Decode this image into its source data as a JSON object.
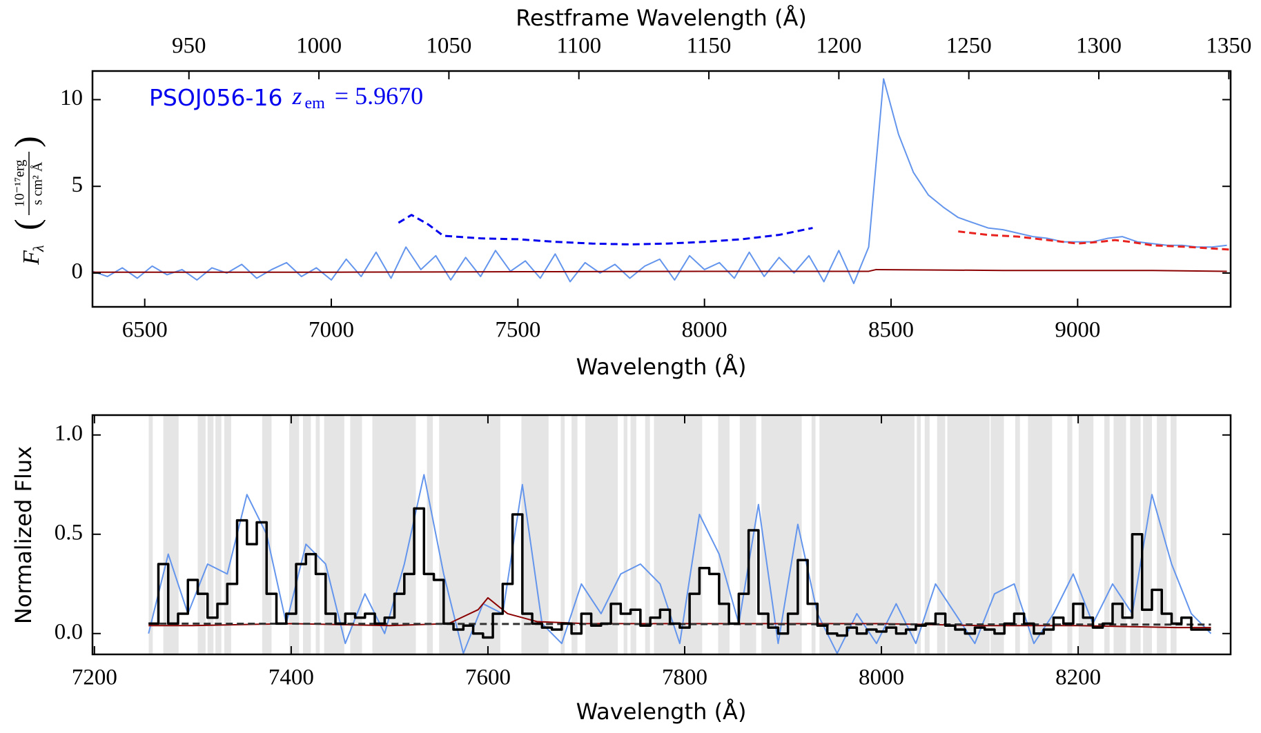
{
  "chart_data": [
    {
      "type": "line",
      "x2label": "Restframe Wavelength (Å)",
      "xlabel": "Wavelength (Å)",
      "ylabel": {
        "symbol": "F",
        "sub": "λ",
        "numerator": "10⁻¹⁷erg",
        "denominator": "s cm² Å"
      },
      "annotation": {
        "name": "PSOJ056-16",
        "z": "z",
        "z_sub": "em",
        "z_value": "= 5.9670"
      },
      "xlim": [
        6360,
        9410
      ],
      "ylim": [
        -1.95,
        11.65
      ],
      "x2lim": [
        912.9,
        1350.7
      ],
      "xticks": [
        6500,
        7000,
        7500,
        8000,
        8500,
        9000
      ],
      "yticks": [
        0,
        5,
        10
      ],
      "x2ticks": [
        950,
        1000,
        1050,
        1100,
        1150,
        1200,
        1250,
        1300,
        1350
      ],
      "series": [
        {
          "color": "#6495ed",
          "style": "solid",
          "x": [
            6360,
            6400,
            6440,
            6480,
            6520,
            6560,
            6600,
            6640,
            6680,
            6720,
            6760,
            6800,
            6840,
            6880,
            6920,
            6960,
            7000,
            7040,
            7080,
            7120,
            7160,
            7200,
            7240,
            7280,
            7320,
            7360,
            7400,
            7440,
            7480,
            7520,
            7560,
            7600,
            7640,
            7680,
            7720,
            7760,
            7800,
            7840,
            7880,
            7920,
            7960,
            8000,
            8040,
            8080,
            8120,
            8160,
            8200,
            8240,
            8280,
            8320,
            8360,
            8400,
            8440,
            8480,
            8520,
            8560,
            8600,
            8640,
            8680,
            8720,
            8760,
            8800,
            8840,
            8880,
            8920,
            8960,
            9000,
            9040,
            9080,
            9120,
            9160,
            9200,
            9240,
            9280,
            9320,
            9360,
            9400
          ],
          "values": [
            0.1,
            -0.2,
            0.3,
            -0.3,
            0.4,
            -0.1,
            0.2,
            -0.4,
            0.3,
            0.0,
            0.5,
            -0.3,
            0.2,
            0.6,
            -0.2,
            0.3,
            -0.4,
            0.8,
            -0.2,
            1.2,
            -0.3,
            1.5,
            0.2,
            1.0,
            -0.4,
            0.9,
            -0.2,
            1.3,
            0.1,
            0.7,
            -0.3,
            1.1,
            -0.5,
            0.6,
            0.0,
            0.5,
            -0.3,
            0.4,
            0.8,
            -0.4,
            1.0,
            0.2,
            0.6,
            -0.3,
            1.2,
            -0.2,
            0.9,
            0.0,
            1.0,
            -0.5,
            1.3,
            -0.6,
            1.5,
            11.2,
            8.0,
            5.8,
            4.5,
            3.8,
            3.2,
            2.9,
            2.6,
            2.5,
            2.3,
            2.1,
            2.0,
            1.8,
            1.8,
            1.8,
            2.0,
            2.1,
            1.8,
            1.7,
            1.6,
            1.6,
            1.5,
            1.5,
            1.6
          ]
        },
        {
          "color": "#8b0000",
          "style": "solid",
          "x": [
            6360,
            7000,
            7600,
            8000,
            8440,
            8460,
            8800,
            9200,
            9400
          ],
          "values": [
            0.05,
            0.05,
            0.08,
            0.1,
            0.1,
            0.2,
            0.15,
            0.15,
            0.1
          ]
        },
        {
          "color": "#e8231f",
          "style": "dashed",
          "x": [
            8680,
            8760,
            8840,
            8920,
            9000,
            9060,
            9100,
            9140,
            9200,
            9300,
            9410
          ],
          "values": [
            2.4,
            2.2,
            2.1,
            1.9,
            1.7,
            1.8,
            1.9,
            1.8,
            1.6,
            1.5,
            1.35
          ]
        },
        {
          "color": "#0000ee",
          "style": "dashed",
          "x": [
            7180,
            7215,
            7260,
            7300,
            7400,
            7500,
            7600,
            7700,
            7800,
            7900,
            8000,
            8100,
            8200,
            8290
          ],
          "values": [
            2.9,
            3.35,
            2.8,
            2.15,
            2.0,
            1.95,
            1.8,
            1.7,
            1.65,
            1.7,
            1.8,
            1.95,
            2.2,
            2.6
          ]
        }
      ]
    },
    {
      "type": "line",
      "xlabel": "Wavelength (Å)",
      "ylabel": "Normalized Flux",
      "xlim": [
        7198,
        8355
      ],
      "ylim": [
        -0.105,
        1.1
      ],
      "xticks": [
        7200,
        7400,
        7600,
        7800,
        8000,
        8200
      ],
      "yticks": [
        {
          "value": 0,
          "label": "0.0"
        },
        {
          "value": 0.5,
          "label": "0.5"
        },
        {
          "value": 1,
          "label": "1.0"
        }
      ],
      "shaded_color": "#e5e5e5",
      "shaded_regions": [
        [
          7255.2,
          7259.3
        ],
        [
          7270,
          7285.5
        ],
        [
          7305,
          7313
        ],
        [
          7315,
          7321
        ],
        [
          7323,
          7329
        ],
        [
          7332,
          7339
        ],
        [
          7370.5,
          7380
        ],
        [
          7398,
          7408
        ],
        [
          7412,
          7420
        ],
        [
          7425,
          7429
        ],
        [
          7433.5,
          7454
        ],
        [
          7460,
          7472
        ],
        [
          7482.5,
          7526.7
        ],
        [
          7538,
          7544
        ],
        [
          7550.4,
          7612.6
        ],
        [
          7634,
          7661.6
        ],
        [
          7674,
          7678
        ],
        [
          7685,
          7691
        ],
        [
          7699,
          7732
        ],
        [
          7738,
          7741.8
        ],
        [
          7745,
          7750.8
        ],
        [
          7759.8,
          7764.7
        ],
        [
          7768.8,
          7817.8
        ],
        [
          7834,
          7845.6
        ],
        [
          7856,
          7872.6
        ],
        [
          7878,
          7919
        ],
        [
          7929,
          7933
        ],
        [
          7937,
          8033.7
        ],
        [
          8036,
          8040
        ],
        [
          8044,
          8049
        ],
        [
          8056.6,
          8064.8
        ],
        [
          8067,
          8110
        ],
        [
          8111,
          8124.5
        ],
        [
          8136,
          8140.8
        ],
        [
          8149,
          8173.5
        ],
        [
          8189,
          8194
        ],
        [
          8200.5,
          8215.5
        ],
        [
          8226.6,
          8232
        ],
        [
          8236,
          8248.7
        ],
        [
          8252.8,
          8263.5
        ],
        [
          8266,
          8275
        ],
        [
          8280,
          8290
        ],
        [
          8294,
          8300
        ]
      ],
      "series": [
        {
          "color": "#6495ed",
          "style": "solid",
          "x": [
            7255,
            7275,
            7295,
            7315,
            7335,
            7355,
            7375,
            7395,
            7415,
            7435,
            7455,
            7475,
            7495,
            7515,
            7535,
            7555,
            7575,
            7595,
            7615,
            7635,
            7655,
            7675,
            7695,
            7715,
            7735,
            7755,
            7775,
            7795,
            7815,
            7835,
            7855,
            7875,
            7895,
            7915,
            7935,
            7955,
            7975,
            7995,
            8015,
            8035,
            8055,
            8075,
            8095,
            8115,
            8135,
            8155,
            8175,
            8195,
            8215,
            8235,
            8255,
            8275,
            8295,
            8315,
            8335
          ],
          "values": [
            0.0,
            0.4,
            0.1,
            0.35,
            0.3,
            0.7,
            0.5,
            0.05,
            0.45,
            0.35,
            -0.05,
            0.2,
            0.0,
            0.35,
            0.8,
            0.3,
            -0.1,
            0.15,
            0.1,
            0.75,
            0.05,
            -0.05,
            0.25,
            0.1,
            0.3,
            0.35,
            0.25,
            -0.05,
            0.6,
            0.4,
            0.05,
            0.65,
            -0.05,
            0.55,
            0.1,
            -0.1,
            0.1,
            -0.05,
            0.15,
            -0.05,
            0.25,
            0.1,
            -0.05,
            0.2,
            0.25,
            -0.05,
            0.1,
            0.3,
            0.05,
            0.25,
            0.1,
            0.7,
            0.35,
            0.1,
            0.0
          ]
        },
        {
          "color": "#8b0000",
          "style": "solid",
          "x": [
            7255,
            7300,
            7400,
            7500,
            7560,
            7590,
            7600,
            7620,
            7650,
            7700,
            7800,
            7900,
            8000,
            8100,
            8200,
            8300,
            8335
          ],
          "values": [
            0.04,
            0.04,
            0.05,
            0.04,
            0.05,
            0.12,
            0.18,
            0.1,
            0.06,
            0.05,
            0.05,
            0.05,
            0.05,
            0.04,
            0.04,
            0.03,
            0.03
          ]
        },
        {
          "color": "#333333",
          "style": "dashed",
          "x": [
            7255,
            8335
          ],
          "values": [
            0.05,
            0.045
          ]
        },
        {
          "color": "#000000",
          "style": "step",
          "x": [
            7260,
            7270,
            7280,
            7290,
            7300,
            7310,
            7320,
            7330,
            7340,
            7350,
            7360,
            7370,
            7380,
            7390,
            7400,
            7410,
            7420,
            7430,
            7440,
            7450,
            7460,
            7470,
            7480,
            7490,
            7500,
            7510,
            7520,
            7530,
            7540,
            7550,
            7560,
            7570,
            7580,
            7590,
            7600,
            7610,
            7620,
            7630,
            7640,
            7650,
            7660,
            7670,
            7680,
            7690,
            7700,
            7710,
            7720,
            7730,
            7740,
            7750,
            7760,
            7770,
            7780,
            7790,
            7800,
            7810,
            7820,
            7830,
            7840,
            7850,
            7860,
            7870,
            7880,
            7890,
            7900,
            7910,
            7920,
            7930,
            7940,
            7950,
            7960,
            7970,
            7980,
            7990,
            8000,
            8010,
            8020,
            8030,
            8040,
            8050,
            8060,
            8070,
            8080,
            8090,
            8100,
            8110,
            8120,
            8130,
            8140,
            8150,
            8160,
            8170,
            8180,
            8190,
            8200,
            8210,
            8220,
            8230,
            8240,
            8250,
            8260,
            8270,
            8280,
            8290,
            8300,
            8310,
            8320,
            8330
          ],
          "values": [
            0.05,
            0.35,
            0.05,
            0.1,
            0.27,
            0.2,
            0.08,
            0.15,
            0.25,
            0.57,
            0.45,
            0.56,
            0.2,
            0.05,
            0.1,
            0.35,
            0.4,
            0.3,
            0.1,
            0.05,
            0.1,
            0.08,
            0.1,
            0.05,
            0.08,
            0.2,
            0.3,
            0.63,
            0.3,
            0.27,
            0.05,
            0.02,
            0.04,
            0.0,
            -0.02,
            0.1,
            0.25,
            0.6,
            0.1,
            0.05,
            0.03,
            0.02,
            0.05,
            0.0,
            0.1,
            0.04,
            0.05,
            0.15,
            0.1,
            0.12,
            0.04,
            0.08,
            0.12,
            0.05,
            0.03,
            0.2,
            0.33,
            0.3,
            0.15,
            0.05,
            0.2,
            0.52,
            0.1,
            0.03,
            0.0,
            0.1,
            0.37,
            0.15,
            0.04,
            0.0,
            -0.01,
            0.03,
            0.0,
            0.02,
            0.01,
            0.03,
            0.0,
            0.02,
            0.04,
            0.05,
            0.1,
            0.04,
            0.02,
            0.0,
            0.03,
            0.02,
            0.0,
            0.05,
            0.1,
            0.05,
            0.0,
            0.02,
            0.08,
            0.05,
            0.15,
            0.08,
            0.03,
            0.05,
            0.15,
            0.08,
            0.5,
            0.12,
            0.22,
            0.1,
            0.05,
            0.08,
            0.02,
            0.02
          ]
        }
      ]
    }
  ]
}
